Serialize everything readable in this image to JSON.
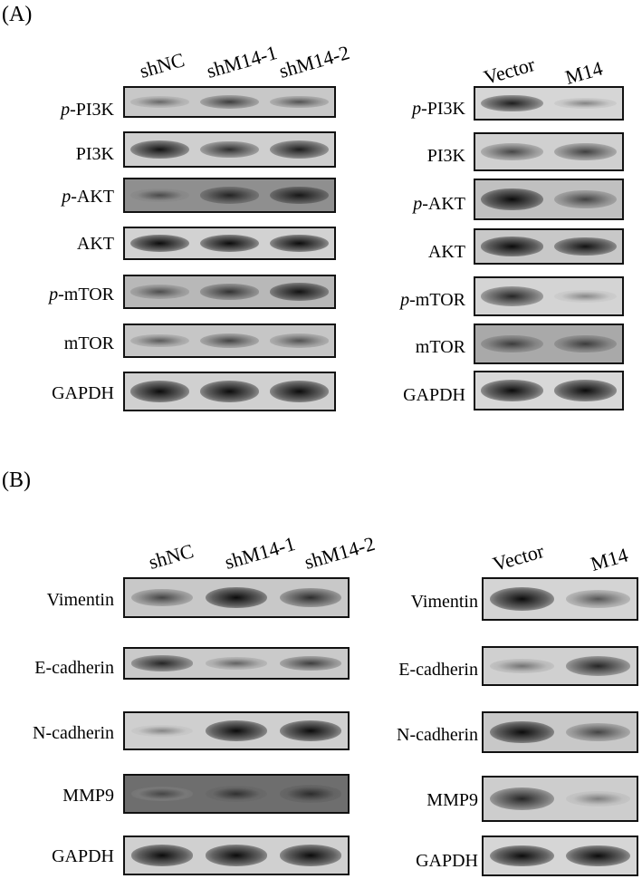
{
  "panels": [
    {
      "label": "(A)",
      "groups": [
        {
          "lanes": [
            "shNC",
            "shM14-1",
            "shM14-2"
          ],
          "rows": [
            {
              "prefix": "p-",
              "name": "PI3K",
              "bg": "#c8c8c8",
              "intensity": [
                0.35,
                0.65,
                0.5
              ]
            },
            {
              "prefix": "",
              "name": "PI3K",
              "bg": "#cfcfcf",
              "intensity": [
                0.9,
                0.75,
                0.85
              ]
            },
            {
              "prefix": "p-",
              "name": "AKT",
              "bg": "#8f8f8f",
              "intensity": [
                0.4,
                0.75,
                0.85
              ]
            },
            {
              "prefix": "",
              "name": "AKT",
              "bg": "#d2d2d2",
              "intensity": [
                0.95,
                0.95,
                0.95
              ]
            },
            {
              "prefix": "p-",
              "name": "mTOR",
              "bg": "#b8b8b8",
              "intensity": [
                0.5,
                0.7,
                0.9
              ]
            },
            {
              "prefix": "",
              "name": "mTOR",
              "bg": "#c6c6c6",
              "intensity": [
                0.45,
                0.6,
                0.5
              ]
            },
            {
              "prefix": "",
              "name": "GAPDH",
              "bg": "#d0d0d0",
              "intensity": [
                0.95,
                0.95,
                0.95
              ]
            }
          ]
        },
        {
          "lanes": [
            "Vector",
            "M14"
          ],
          "rows": [
            {
              "prefix": "p-",
              "name": "PI3K",
              "bg": "#d6d6d6",
              "intensity": [
                0.85,
                0.2
              ]
            },
            {
              "prefix": "",
              "name": "PI3K",
              "bg": "#d0d0d0",
              "intensity": [
                0.6,
                0.65
              ]
            },
            {
              "prefix": "p-",
              "name": "AKT",
              "bg": "#c0c0c0",
              "intensity": [
                0.95,
                0.6
              ]
            },
            {
              "prefix": "",
              "name": "AKT",
              "bg": "#c8c8c8",
              "intensity": [
                0.95,
                0.9
              ]
            },
            {
              "prefix": "p-",
              "name": "mTOR",
              "bg": "#d4d4d4",
              "intensity": [
                0.8,
                0.15
              ]
            },
            {
              "prefix": "",
              "name": "mTOR",
              "bg": "#a9a9a9",
              "intensity": [
                0.6,
                0.6
              ]
            },
            {
              "prefix": "",
              "name": "GAPDH",
              "bg": "#d8d8d8",
              "intensity": [
                0.95,
                0.95
              ]
            }
          ]
        }
      ]
    },
    {
      "label": "(B)",
      "groups": [
        {
          "lanes": [
            "shNC",
            "shM14-1",
            "shM14-2"
          ],
          "rows": [
            {
              "prefix": "",
              "name": "Vimentin",
              "bg": "#c8c8c8",
              "intensity": [
                0.6,
                0.95,
                0.75
              ]
            },
            {
              "prefix": "",
              "name": "E-cadherin",
              "bg": "#cacaca",
              "intensity": [
                0.8,
                0.4,
                0.65
              ]
            },
            {
              "prefix": "",
              "name": "N-cadherin",
              "bg": "#cfcfcf",
              "intensity": [
                0.15,
                0.95,
                0.95
              ]
            },
            {
              "prefix": "",
              "name": "MMP9",
              "bg": "#6e6e6e",
              "intensity": [
                0.3,
                0.55,
                0.6
              ]
            },
            {
              "prefix": "",
              "name": "GAPDH",
              "bg": "#d0d0d0",
              "intensity": [
                0.95,
                0.95,
                0.95
              ]
            }
          ]
        },
        {
          "lanes": [
            "Vector",
            "M14"
          ],
          "rows": [
            {
              "prefix": "",
              "name": "Vimentin",
              "bg": "#d4d4d4",
              "intensity": [
                0.95,
                0.5
              ]
            },
            {
              "prefix": "",
              "name": "E-cadherin",
              "bg": "#d0d0d0",
              "intensity": [
                0.3,
                0.8
              ]
            },
            {
              "prefix": "",
              "name": "N-cadherin",
              "bg": "#c8c8c8",
              "intensity": [
                0.95,
                0.6
              ]
            },
            {
              "prefix": "",
              "name": "MMP9",
              "bg": "#cdcdcd",
              "intensity": [
                0.8,
                0.2
              ]
            },
            {
              "prefix": "",
              "name": "GAPDH",
              "bg": "#d6d6d6",
              "intensity": [
                0.95,
                0.95
              ]
            }
          ]
        }
      ]
    }
  ]
}
